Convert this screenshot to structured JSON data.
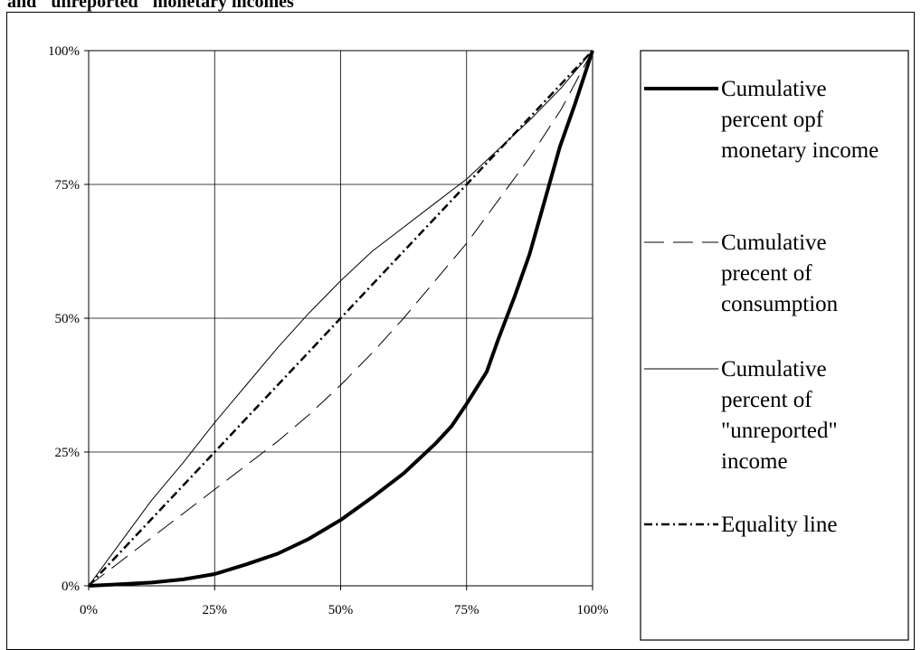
{
  "header": {
    "title_fragment": "and \"unreported\" monetary incomes"
  },
  "chart_data": {
    "type": "line",
    "title": "and \"unreported\" monetary incomes",
    "x_ticks": [
      "0%",
      "25%",
      "50%",
      "75%",
      "100%"
    ],
    "y_ticks": [
      "0%",
      "25%",
      "50%",
      "75%",
      "100%"
    ],
    "xlim": [
      0,
      100
    ],
    "ylim": [
      0,
      100
    ],
    "grid": true,
    "legend_position": "right",
    "series": [
      {
        "name": "Cumulative percent opf monetary income",
        "legend_lines": [
          "Cumulative",
          "percent opf",
          "monetary income"
        ],
        "style": "thick-solid",
        "color": "#000000",
        "x": [
          0,
          6.25,
          12.5,
          18.75,
          25,
          31.25,
          37.5,
          43.75,
          50,
          56.25,
          62.5,
          68.75,
          72,
          75,
          79,
          81.25,
          84.5,
          87.5,
          90.5,
          93.5,
          96.5,
          100
        ],
        "y": [
          0,
          0.3,
          0.6,
          1.2,
          2.2,
          4,
          6,
          8.8,
          12.3,
          16.5,
          21,
          26.5,
          29.8,
          34,
          40,
          46,
          54,
          62,
          72,
          82,
          90,
          100
        ]
      },
      {
        "name": "Cumulative precent of consumption",
        "legend_lines": [
          "Cumulative",
          "precent of",
          "consumption"
        ],
        "style": "long-dash",
        "color": "#000000",
        "x": [
          0,
          6.25,
          12.5,
          18.75,
          25,
          31.25,
          37.5,
          43.75,
          50,
          56.25,
          62.5,
          68.75,
          75,
          81.25,
          87.5,
          93.75,
          100
        ],
        "y": [
          0,
          4.5,
          9,
          13.5,
          18,
          22.5,
          27,
          32,
          37.5,
          43.5,
          50,
          57,
          64,
          72,
          80,
          89,
          100
        ]
      },
      {
        "name": "Cumulative percent of \"unreported\" income",
        "legend_lines": [
          "Cumulative",
          "percent of",
          "\"unreported\"",
          "income"
        ],
        "style": "thin-solid",
        "color": "#000000",
        "x": [
          0,
          6.25,
          12.5,
          18.75,
          25,
          31.25,
          37.5,
          43.75,
          50,
          56.25,
          62.5,
          68.75,
          75,
          81.25,
          87.5,
          93.75,
          100
        ],
        "y": [
          0,
          8,
          16,
          23,
          30.5,
          37.5,
          44.5,
          51,
          57,
          62.5,
          67,
          71.5,
          76,
          81.5,
          87,
          93,
          100
        ]
      },
      {
        "name": "Equality line",
        "legend_lines": [
          "Equality line"
        ],
        "style": "dash-dot",
        "color": "#000000",
        "x": [
          0,
          12.5,
          25,
          37.5,
          50,
          62.5,
          75,
          87.5,
          100
        ],
        "y": [
          0,
          12.5,
          25,
          37.5,
          50,
          62.5,
          75,
          87.5,
          100
        ]
      }
    ]
  }
}
